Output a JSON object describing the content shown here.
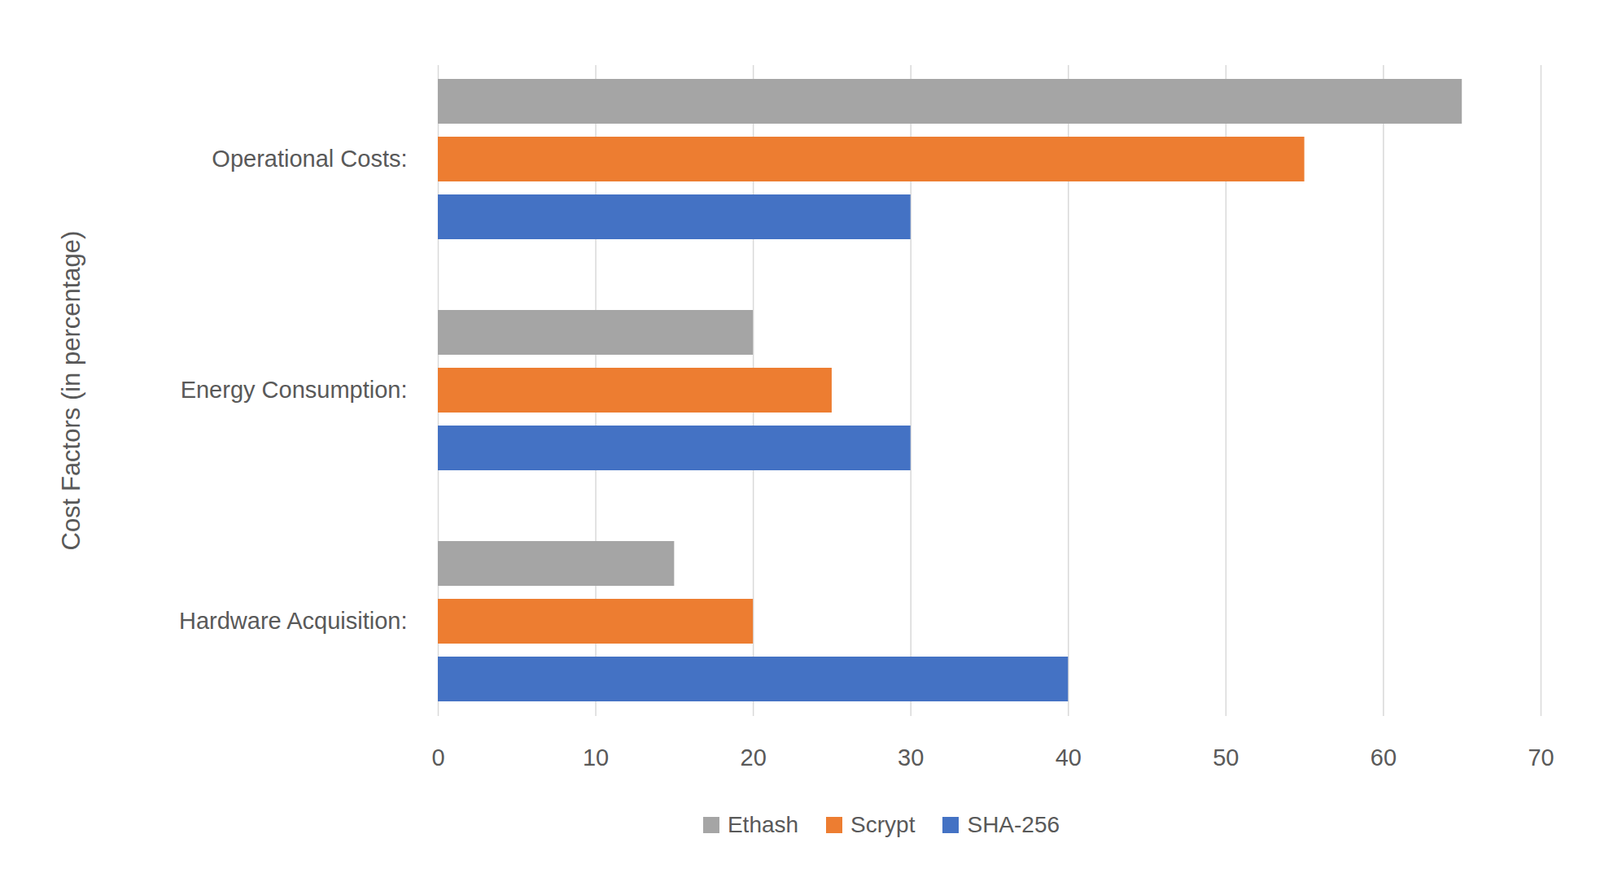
{
  "chart_data": {
    "type": "bar",
    "orientation": "horizontal",
    "y_label": "Cost Factors (in percentage)",
    "categories": [
      "Operational Costs:",
      "Energy Consumption:",
      "Hardware Acquisition:"
    ],
    "series": [
      {
        "name": "Ethash",
        "color": "#a5a5a5",
        "values": [
          65,
          20,
          15
        ]
      },
      {
        "name": "Scrypt",
        "color": "#ed7d31",
        "values": [
          55,
          25,
          20
        ]
      },
      {
        "name": "SHA-256",
        "color": "#4472c4",
        "values": [
          30,
          30,
          40
        ]
      }
    ],
    "xlim": [
      0,
      70
    ],
    "xticks": [
      0,
      10,
      20,
      30,
      40,
      50,
      60,
      70
    ],
    "grid": true,
    "legend": "bottom"
  }
}
